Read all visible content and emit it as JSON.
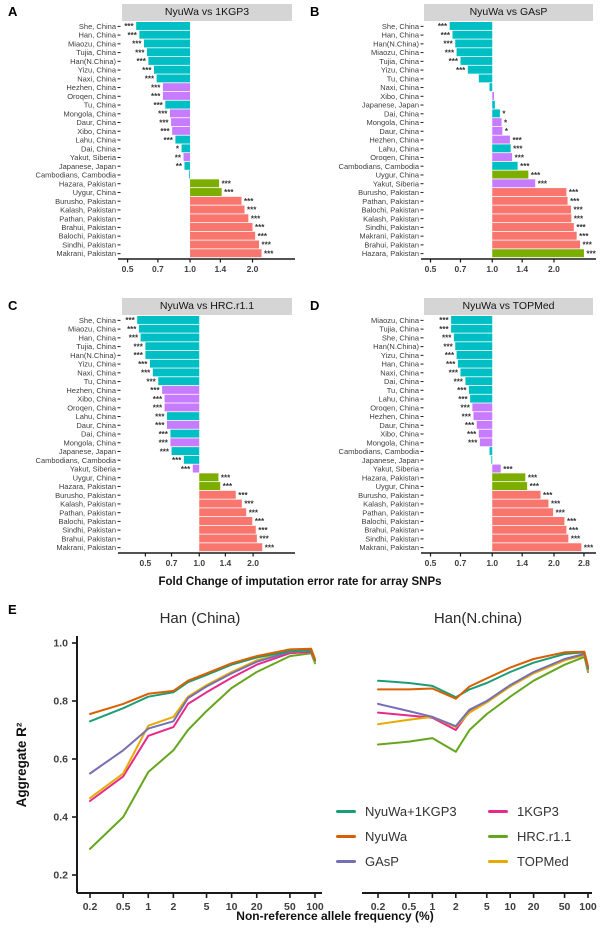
{
  "panels": {
    "a": {
      "letter": "A"
    },
    "b": {
      "letter": "B"
    },
    "c": {
      "letter": "C"
    },
    "d": {
      "letter": "D"
    },
    "e": {
      "letter": "E"
    }
  },
  "labels": {
    "bars_x": "Fold Change of imputation error rate for array SNPs",
    "e_x": "Non-reference allele frequency (%)",
    "e_y": "Aggregate R²"
  },
  "colors": {
    "bars": {
      "cyan": "#00BFC4",
      "purple": "#C77CFF",
      "green": "#7CAE00",
      "red": "#F8766D"
    },
    "strip_bg": "#D5D5D5",
    "axis": "#1a1a1a",
    "tick_text": "#3f3f3f"
  },
  "panel_e": {
    "legend": {
      "items": [
        {
          "label": "NyuWa+1KGP3",
          "color": "#1B9E77"
        },
        {
          "label": "NyuWa",
          "color": "#D95F02"
        },
        {
          "label": "GAsP",
          "color": "#7570B3"
        },
        {
          "label": "1KGP3",
          "color": "#E7298A"
        },
        {
          "label": "HRC.r1.1",
          "color": "#66A61E"
        },
        {
          "label": "TOPMed",
          "color": "#E6AB02"
        }
      ]
    }
  },
  "chart_data": [
    {
      "id": "A",
      "type": "bar",
      "orientation": "horizontal",
      "title": "NyuWa vs 1KGP3",
      "x_scale": "log",
      "baseline": 1.0,
      "xlim": [
        0.47,
        3.1
      ],
      "xticks": [
        0.5,
        0.7,
        1.0,
        1.4,
        2.0
      ],
      "columns": [
        "label",
        "value",
        "color",
        "sig"
      ],
      "rows": [
        [
          "She, China",
          0.55,
          "cyan",
          "***"
        ],
        [
          "Han, China",
          0.57,
          "cyan",
          "***"
        ],
        [
          "Miaozu, China",
          0.6,
          "cyan",
          "***"
        ],
        [
          "Tujia, China",
          0.62,
          "cyan",
          "***"
        ],
        [
          "Han(N.China)",
          0.63,
          "cyan",
          "***"
        ],
        [
          "Yizu, China",
          0.67,
          "cyan",
          "***"
        ],
        [
          "Naxi, China",
          0.69,
          "cyan",
          "***"
        ],
        [
          "Hezhen, China",
          0.74,
          "purple",
          "***"
        ],
        [
          "Oroqen, China",
          0.74,
          "purple",
          "***"
        ],
        [
          "Tu, China",
          0.76,
          "cyan",
          "***"
        ],
        [
          "Mongola, China",
          0.8,
          "purple",
          "***"
        ],
        [
          "Daur, China",
          0.81,
          "purple",
          "***"
        ],
        [
          "Xibo, China",
          0.82,
          "purple",
          "***"
        ],
        [
          "Lahu, China",
          0.85,
          "cyan",
          "***"
        ],
        [
          "Dai, China",
          0.91,
          "cyan",
          "*"
        ],
        [
          "Yakut, Siberia",
          0.93,
          "purple",
          "**"
        ],
        [
          "Japanese, Japan",
          0.94,
          "cyan",
          "**"
        ],
        [
          "Cambodians, Cambodia",
          0.99,
          "cyan",
          ""
        ],
        [
          "Hazara, Pakistan",
          1.38,
          "green",
          "***"
        ],
        [
          "Uygur, China",
          1.42,
          "green",
          "***"
        ],
        [
          "Burusho, Pakistan",
          1.77,
          "red",
          "***"
        ],
        [
          "Kalash, Pakistan",
          1.83,
          "red",
          "***"
        ],
        [
          "Pathan, Pakistan",
          1.91,
          "red",
          "***"
        ],
        [
          "Brahui, Pakistan",
          2.0,
          "red",
          "***"
        ],
        [
          "Balochi, Pakistan",
          2.06,
          "red",
          "***"
        ],
        [
          "Sindhi, Pakistan",
          2.15,
          "red",
          "***"
        ],
        [
          "Makrani, Pakistan",
          2.21,
          "red",
          "***"
        ]
      ]
    },
    {
      "id": "B",
      "type": "bar",
      "orientation": "horizontal",
      "title": "NyuWa vs GAsP",
      "x_scale": "log",
      "baseline": 1.0,
      "xlim": [
        0.47,
        3.1
      ],
      "xticks": [
        0.5,
        0.7,
        1.0,
        1.4,
        2.0
      ],
      "columns": [
        "label",
        "value",
        "color",
        "sig"
      ],
      "rows": [
        [
          "She, China",
          0.62,
          "cyan",
          "***"
        ],
        [
          "Han, China",
          0.64,
          "cyan",
          "***"
        ],
        [
          "Han(N.China)",
          0.66,
          "cyan",
          "***"
        ],
        [
          "Miaozu, China",
          0.67,
          "cyan",
          "***"
        ],
        [
          "Tujia, China",
          0.7,
          "cyan",
          "***"
        ],
        [
          "Yizu, China",
          0.76,
          "cyan",
          "***"
        ],
        [
          "Tu, China",
          0.86,
          "cyan",
          ""
        ],
        [
          "Naxi, China",
          0.97,
          "cyan",
          ""
        ],
        [
          "Xibo, China",
          1.02,
          "purple",
          ""
        ],
        [
          "Japanese, Japan",
          1.03,
          "cyan",
          ""
        ],
        [
          "Dai, China",
          1.09,
          "cyan",
          "*"
        ],
        [
          "Mongola, China",
          1.11,
          "purple",
          "*"
        ],
        [
          "Daur, China",
          1.12,
          "purple",
          "*"
        ],
        [
          "Hezhen, China",
          1.22,
          "purple",
          "***"
        ],
        [
          "Lahu, China",
          1.23,
          "cyan",
          "***"
        ],
        [
          "Oroqen, China",
          1.25,
          "purple",
          "***"
        ],
        [
          "Cambodians, Cambodia",
          1.33,
          "cyan",
          "***"
        ],
        [
          "Uygur, China",
          1.5,
          "green",
          "***"
        ],
        [
          "Yakut, Siberia",
          1.62,
          "purple",
          "***"
        ],
        [
          "Burusho, Pakistan",
          2.3,
          "red",
          "***"
        ],
        [
          "Pathan, Pakistan",
          2.33,
          "red",
          "***"
        ],
        [
          "Balochi, Pakistan",
          2.42,
          "red",
          "***"
        ],
        [
          "Kalash, Pakistan",
          2.43,
          "red",
          "***"
        ],
        [
          "Sindhi, Pakistan",
          2.5,
          "red",
          "***"
        ],
        [
          "Makrani, Pakistan",
          2.58,
          "red",
          "***"
        ],
        [
          "Brahui, Pakistan",
          2.68,
          "red",
          "***"
        ],
        [
          "Hazara, Pakistan",
          2.8,
          "green",
          "***"
        ]
      ]
    },
    {
      "id": "C",
      "type": "bar",
      "orientation": "horizontal",
      "title": "NyuWa vs HRC.r1.1",
      "x_scale": "log",
      "baseline": 1.0,
      "xlim": [
        0.37,
        3.3
      ],
      "xticks": [
        0.5,
        0.7,
        1.0,
        1.4,
        2.0
      ],
      "columns": [
        "label",
        "value",
        "color",
        "sig"
      ],
      "rows": [
        [
          "She, China",
          0.45,
          "cyan",
          "***"
        ],
        [
          "Miaozu, China",
          0.46,
          "cyan",
          "***"
        ],
        [
          "Han, China",
          0.47,
          "cyan",
          "***"
        ],
        [
          "Tujia, China",
          0.5,
          "cyan",
          "***"
        ],
        [
          "Han(N.China)",
          0.5,
          "cyan",
          "***"
        ],
        [
          "Yizu, China",
          0.53,
          "cyan",
          "***"
        ],
        [
          "Naxi, China",
          0.55,
          "cyan",
          "***"
        ],
        [
          "Tu, China",
          0.59,
          "cyan",
          "***"
        ],
        [
          "Hezhen, China",
          0.62,
          "purple",
          "***"
        ],
        [
          "Xibo, China",
          0.64,
          "purple",
          "***"
        ],
        [
          "Oroqen, China",
          0.64,
          "purple",
          "***"
        ],
        [
          "Lahu, China",
          0.66,
          "cyan",
          "***"
        ],
        [
          "Daur, China",
          0.66,
          "purple",
          "***"
        ],
        [
          "Dai, China",
          0.69,
          "cyan",
          "***"
        ],
        [
          "Mongola, China",
          0.69,
          "purple",
          "***"
        ],
        [
          "Japanese, Japan",
          0.7,
          "cyan",
          "***"
        ],
        [
          "Cambodians, Cambodia",
          0.82,
          "cyan",
          "***"
        ],
        [
          "Yakut, Siberia",
          0.92,
          "purple",
          "***"
        ],
        [
          "Uygur, China",
          1.28,
          "green",
          "***"
        ],
        [
          "Hazara, Pakistan",
          1.31,
          "green",
          "***"
        ],
        [
          "Burusho, Pakistan",
          1.6,
          "red",
          "***"
        ],
        [
          "Kalash, Pakistan",
          1.73,
          "red",
          "***"
        ],
        [
          "Pathan, Pakistan",
          1.83,
          "red",
          "***"
        ],
        [
          "Balochi, Pakistan",
          1.98,
          "red",
          "***"
        ],
        [
          "Sindhi, Pakistan",
          2.07,
          "red",
          "***"
        ],
        [
          "Brahui, Pakistan",
          2.1,
          "red",
          "***"
        ],
        [
          "Makrani, Pakistan",
          2.25,
          "red",
          "***"
        ]
      ]
    },
    {
      "id": "D",
      "type": "bar",
      "orientation": "horizontal",
      "title": "NyuWa vs TOPMed",
      "x_scale": "log",
      "baseline": 1.0,
      "xlim": [
        0.47,
        3.1
      ],
      "xticks": [
        0.5,
        0.7,
        1.0,
        1.4,
        2.0,
        2.8
      ],
      "columns": [
        "label",
        "value",
        "color",
        "sig"
      ],
      "rows": [
        [
          "Miaozu, China",
          0.63,
          "cyan",
          "***"
        ],
        [
          "Tujia, China",
          0.63,
          "cyan",
          "***"
        ],
        [
          "She, China",
          0.65,
          "cyan",
          "***"
        ],
        [
          "Han(N.China)",
          0.66,
          "cyan",
          "***"
        ],
        [
          "Yizu, China",
          0.67,
          "cyan",
          "***"
        ],
        [
          "Han, China",
          0.68,
          "cyan",
          "***"
        ],
        [
          "Naxi, China",
          0.7,
          "cyan",
          "***"
        ],
        [
          "Dai, China",
          0.74,
          "cyan",
          "***"
        ],
        [
          "Tu, China",
          0.77,
          "cyan",
          "***"
        ],
        [
          "Lahu, China",
          0.78,
          "cyan",
          "***"
        ],
        [
          "Oroqen, China",
          0.8,
          "purple",
          "***"
        ],
        [
          "Hezhen, China",
          0.81,
          "purple",
          "***"
        ],
        [
          "Daur, China",
          0.84,
          "purple",
          "***"
        ],
        [
          "Xibo, China",
          0.86,
          "purple",
          "***"
        ],
        [
          "Mongola, China",
          0.87,
          "purple",
          "***"
        ],
        [
          "Cambodians, Cambodia",
          0.97,
          "cyan",
          ""
        ],
        [
          "Japanese, Japan",
          0.99,
          "cyan",
          ""
        ],
        [
          "Yakut, Siberia",
          1.1,
          "purple",
          "***"
        ],
        [
          "Hazara, Pakistan",
          1.45,
          "green",
          "***"
        ],
        [
          "Uygur, China",
          1.48,
          "green",
          "***"
        ],
        [
          "Burusho, Pakistan",
          1.72,
          "red",
          "***"
        ],
        [
          "Kalash, Pakistan",
          1.88,
          "red",
          "***"
        ],
        [
          "Pathan, Pakistan",
          1.98,
          "red",
          "***"
        ],
        [
          "Balochi, Pakistan",
          2.25,
          "red",
          "***"
        ],
        [
          "Brahui, Pakistan",
          2.3,
          "red",
          "***"
        ],
        [
          "Sindhi, Pakistan",
          2.35,
          "red",
          "***"
        ],
        [
          "Makrani, Pakistan",
          2.72,
          "red",
          "***"
        ]
      ]
    },
    {
      "id": "E_left",
      "type": "line",
      "title": "Han (China)",
      "x_scale": "log",
      "x": [
        0.2,
        0.5,
        1,
        2,
        3,
        5,
        10,
        20,
        50,
        90,
        100
      ],
      "xticks": [
        0.2,
        0.5,
        1,
        2,
        5,
        10,
        20,
        50,
        100
      ],
      "ylim": [
        0.2,
        1.0
      ],
      "yticks": [
        0.2,
        0.4,
        0.6,
        0.8,
        1.0
      ],
      "series": [
        {
          "name": "NyuWa+1KGP3",
          "color": "#1B9E77",
          "values": [
            0.73,
            0.775,
            0.815,
            0.83,
            0.865,
            0.89,
            0.925,
            0.95,
            0.972,
            0.975,
            0.94
          ]
        },
        {
          "name": "NyuWa",
          "color": "#D95F02",
          "values": [
            0.755,
            0.79,
            0.825,
            0.835,
            0.87,
            0.895,
            0.93,
            0.955,
            0.978,
            0.98,
            0.945
          ]
        },
        {
          "name": "GAsP",
          "color": "#7570B3",
          "values": [
            0.55,
            0.63,
            0.705,
            0.73,
            0.81,
            0.85,
            0.895,
            0.935,
            0.97,
            0.975,
            0.94
          ]
        },
        {
          "name": "1KGP3",
          "color": "#E7298A",
          "values": [
            0.455,
            0.54,
            0.68,
            0.71,
            0.79,
            0.83,
            0.88,
            0.925,
            0.965,
            0.97,
            0.935
          ]
        },
        {
          "name": "HRC.r1.1",
          "color": "#66A61E",
          "values": [
            0.29,
            0.4,
            0.555,
            0.63,
            0.7,
            0.765,
            0.845,
            0.9,
            0.955,
            0.965,
            0.93
          ]
        },
        {
          "name": "TOPMed",
          "color": "#E6AB02",
          "values": [
            0.465,
            0.55,
            0.715,
            0.745,
            0.815,
            0.855,
            0.9,
            0.94,
            0.97,
            0.975,
            0.935
          ]
        }
      ]
    },
    {
      "id": "E_right",
      "type": "line",
      "title": "Han(N.china)",
      "x_scale": "log",
      "x": [
        0.2,
        0.5,
        1,
        2,
        3,
        5,
        10,
        20,
        50,
        90,
        100
      ],
      "xticks": [
        0.2,
        0.5,
        1,
        2,
        5,
        10,
        20,
        50,
        100
      ],
      "ylim": [
        0.2,
        1.0
      ],
      "yticks": [
        0.2,
        0.4,
        0.6,
        0.8,
        1.0
      ],
      "series": [
        {
          "name": "NyuWa+1KGP3",
          "color": "#1B9E77",
          "values": [
            0.87,
            0.862,
            0.852,
            0.813,
            0.84,
            0.862,
            0.9,
            0.932,
            0.962,
            0.968,
            0.915
          ]
        },
        {
          "name": "NyuWa",
          "color": "#D95F02",
          "values": [
            0.84,
            0.84,
            0.843,
            0.808,
            0.85,
            0.878,
            0.915,
            0.945,
            0.968,
            0.97,
            0.92
          ]
        },
        {
          "name": "GAsP",
          "color": "#7570B3",
          "values": [
            0.79,
            0.765,
            0.745,
            0.713,
            0.77,
            0.8,
            0.855,
            0.9,
            0.945,
            0.962,
            0.91
          ]
        },
        {
          "name": "1KGP3",
          "color": "#E7298A",
          "values": [
            0.76,
            0.75,
            0.742,
            0.7,
            0.765,
            0.798,
            0.853,
            0.898,
            0.944,
            0.962,
            0.91
          ]
        },
        {
          "name": "HRC.r1.1",
          "color": "#66A61E",
          "values": [
            0.65,
            0.66,
            0.672,
            0.625,
            0.7,
            0.755,
            0.815,
            0.87,
            0.925,
            0.952,
            0.9
          ]
        },
        {
          "name": "TOPMed",
          "color": "#E6AB02",
          "values": [
            0.72,
            0.735,
            0.745,
            0.71,
            0.76,
            0.795,
            0.85,
            0.895,
            0.94,
            0.958,
            0.905
          ]
        }
      ]
    }
  ]
}
